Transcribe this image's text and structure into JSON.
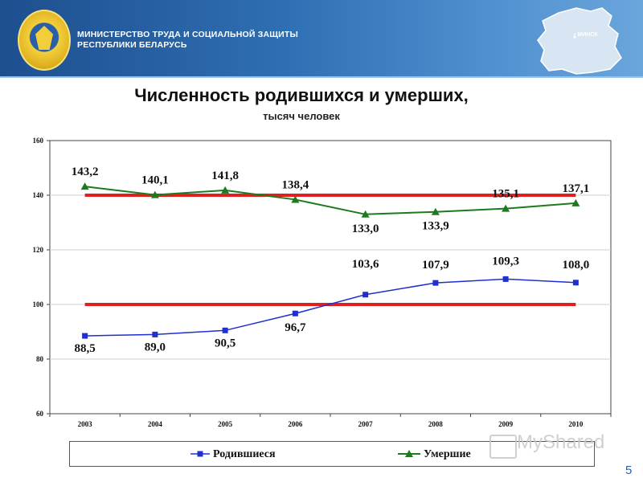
{
  "header": {
    "ministry_line1": "МИНИСТЕРСТВО ТРУДА И СОЦИАЛЬНОЙ ЗАЩИТЫ",
    "ministry_line2": "РЕСПУБЛИКИ БЕЛАРУСЬ",
    "map_label": "• МИНСК",
    "emblem_icon": "ministry-emblem-icon",
    "map_icon": "belarus-map-icon"
  },
  "page_number": "5",
  "watermark": "MyShared",
  "colors": {
    "born": "#1f2fd0",
    "died": "#1e7a1e",
    "threshold": "#e02020",
    "header_dark": "#1d4f8f",
    "header_light": "#6aa6dc"
  },
  "chart_data": {
    "type": "line",
    "title": "Численность родившихся и умерших,",
    "subtitle": "тысяч человек",
    "categories": [
      "2003",
      "2004",
      "2005",
      "2006",
      "2007",
      "2008",
      "2009",
      "2010"
    ],
    "ylim": [
      60,
      160
    ],
    "yticks": [
      "60",
      "80",
      "100",
      "120",
      "140",
      "160"
    ],
    "grid": "horizontal",
    "legend_position": "bottom",
    "series": [
      {
        "name": "Родившиеся",
        "values": [
          88.5,
          89.0,
          90.5,
          96.7,
          103.6,
          107.9,
          109.3,
          108.0
        ],
        "labels": [
          "88,5",
          "89,0",
          "90,5",
          "96,7",
          "103,6",
          "107,9",
          "109,3",
          "108,0"
        ],
        "marker": "square"
      },
      {
        "name": "Умершие",
        "values": [
          143.2,
          140.1,
          141.8,
          138.4,
          133.0,
          133.9,
          135.1,
          137.1
        ],
        "labels": [
          "143,2",
          "140,1",
          "141,8",
          "138,4",
          "133,0",
          "133,9",
          "135,1",
          "137,1"
        ],
        "marker": "triangle"
      }
    ],
    "reference_lines": [
      140,
      100
    ]
  }
}
